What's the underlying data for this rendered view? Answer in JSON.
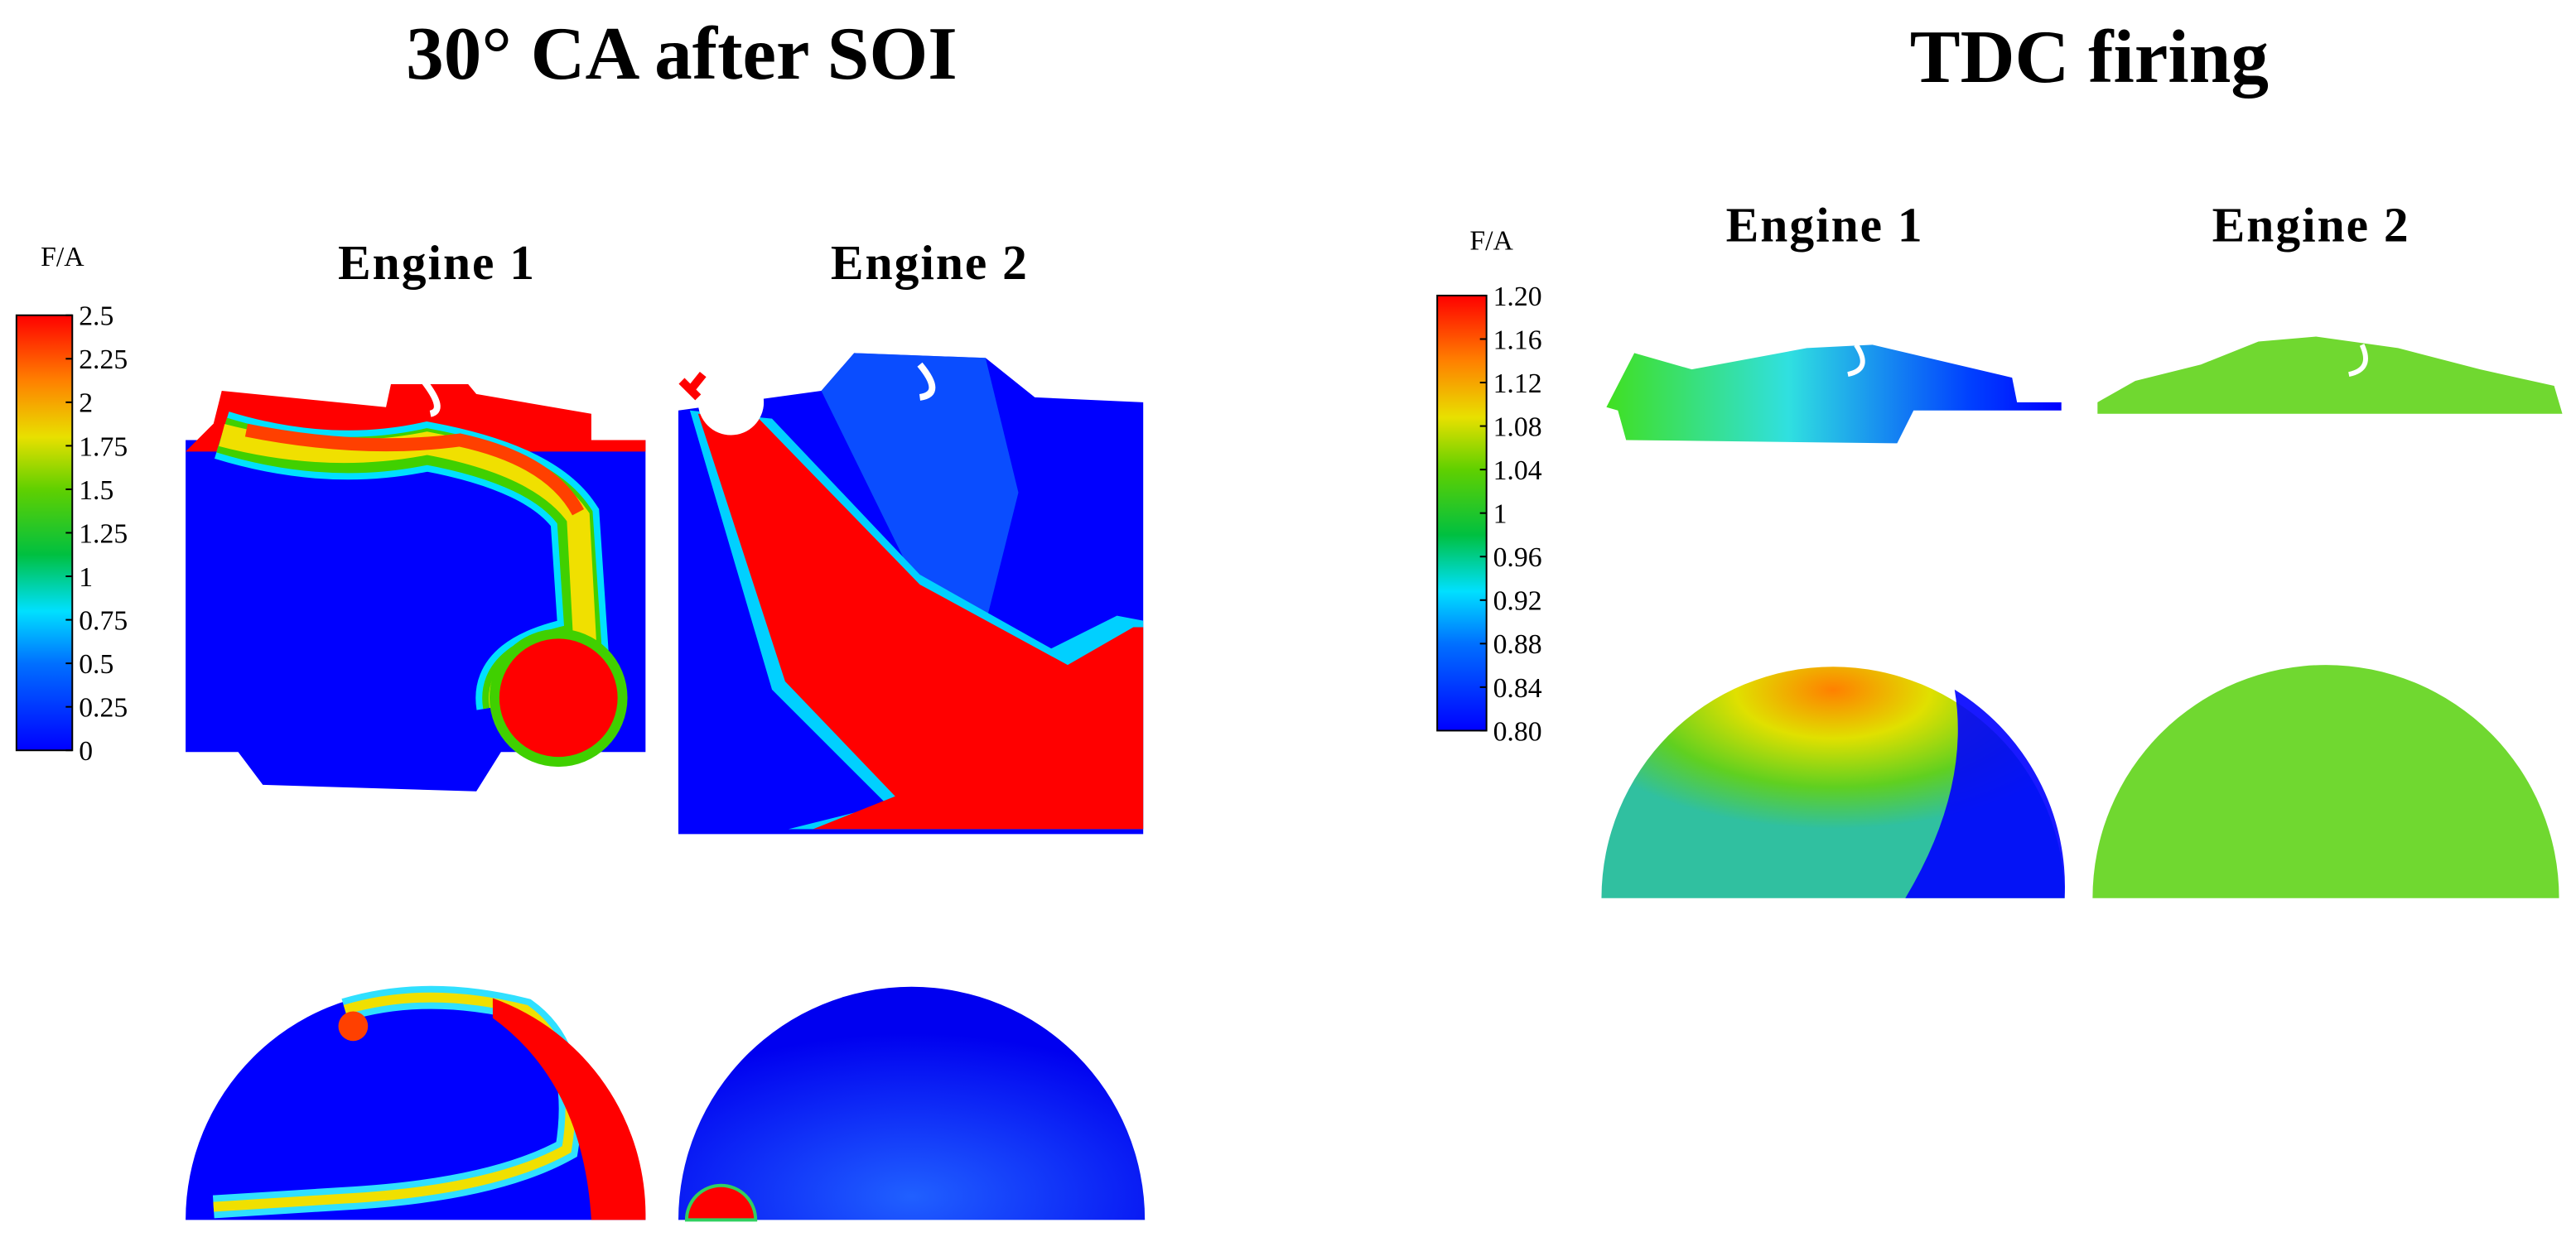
{
  "panels": [
    {
      "title": "30° CA after SOI",
      "colorbar": {
        "label": "F/A",
        "ticks": [
          "2.5",
          "2.25",
          "2",
          "1.75",
          "1.5",
          "1.25",
          "1",
          "0.75",
          "0.5",
          "0.25",
          "0"
        ]
      },
      "engines": [
        "Engine 1",
        "Engine 2"
      ]
    },
    {
      "title": "TDC firing",
      "colorbar": {
        "label": "F/A",
        "ticks": [
          "1.20",
          "1.16",
          "1.12",
          "1.08",
          "1.04",
          "1",
          "0.96",
          "0.92",
          "0.88",
          "0.84",
          "0.80"
        ]
      },
      "engines": [
        "Engine 1",
        "Engine 2"
      ]
    }
  ]
}
